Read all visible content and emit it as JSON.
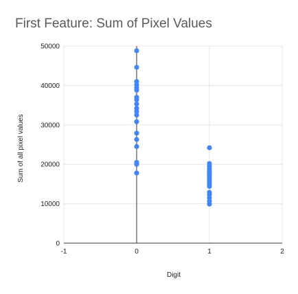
{
  "chart_data": {
    "type": "scatter",
    "title": "First Feature: Sum of Pixel Values",
    "xlabel": "Digit",
    "ylabel": "Sum of all pixel values",
    "xlim": [
      -1,
      2
    ],
    "ylim": [
      0,
      50000
    ],
    "x_ticks": [
      "-1",
      "0",
      "1",
      "2"
    ],
    "y_ticks": [
      "0",
      "10000",
      "20000",
      "30000",
      "40000",
      "50000"
    ],
    "grid": true,
    "series": [
      {
        "color": "#4285f4",
        "points": [
          [
            0,
            48800
          ],
          [
            0,
            44600
          ],
          [
            0,
            41000
          ],
          [
            0,
            40200
          ],
          [
            0,
            39500
          ],
          [
            0,
            38800
          ],
          [
            0,
            37000
          ],
          [
            0,
            36400
          ],
          [
            0,
            35300
          ],
          [
            0,
            34200
          ],
          [
            0,
            33400
          ],
          [
            0,
            32500
          ],
          [
            0,
            30800
          ],
          [
            0,
            27900
          ],
          [
            0,
            26300
          ],
          [
            0,
            24500
          ],
          [
            0,
            20500
          ],
          [
            0,
            20000
          ],
          [
            0,
            17800
          ],
          [
            1,
            24200
          ],
          [
            1,
            20200
          ],
          [
            1,
            19500
          ],
          [
            1,
            18900
          ],
          [
            1,
            18300
          ],
          [
            1,
            17700
          ],
          [
            1,
            17200
          ],
          [
            1,
            16600
          ],
          [
            1,
            16000
          ],
          [
            1,
            15500
          ],
          [
            1,
            14900
          ],
          [
            1,
            14400
          ],
          [
            1,
            12900
          ],
          [
            1,
            12300
          ],
          [
            1,
            11500
          ],
          [
            1,
            10700
          ],
          [
            1,
            9900
          ]
        ]
      }
    ]
  }
}
